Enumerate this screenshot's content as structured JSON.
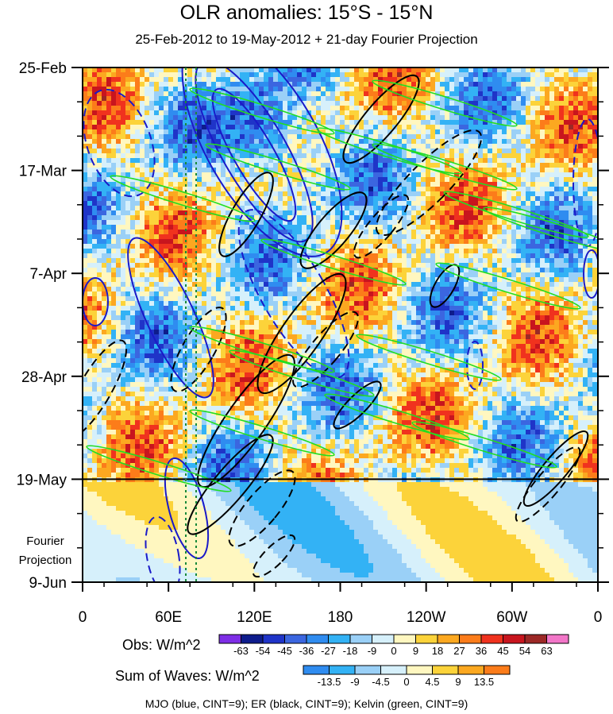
{
  "title": "OLR anomalies: 15°S - 15°N",
  "subtitle": "25-Feb-2012 to 19-May-2012 + 21-day Fourier Projection",
  "projection_label_line1": "Fourier",
  "projection_label_line2": "Projection",
  "obs_label": "Obs: W/m^2",
  "waves_label": "Sum of Waves: W/m^2",
  "footnote": "MJO (blue, CINT=9); ER (black, CINT=9); Kelvin (green, CINT=9)",
  "chart_data": {
    "type": "heatmap",
    "title": "OLR anomalies: 15°S - 15°N",
    "subtitle": "25-Feb-2012 to 19-May-2012 + 21-day Fourier Projection",
    "x_tick_labels": [
      "0",
      "60E",
      "120E",
      "180",
      "120W",
      "60W",
      "0"
    ],
    "x_tick_degrees": [
      0,
      60,
      120,
      180,
      240,
      300,
      360
    ],
    "xlim": [
      0,
      360
    ],
    "y_tick_labels": [
      "25-Feb",
      "17-Mar",
      "7-Apr",
      "28-Apr",
      "19-May",
      "9-Jun"
    ],
    "y_tick_days": [
      0,
      21,
      42,
      63,
      84,
      105
    ],
    "ylim_days": [
      0,
      105
    ],
    "projection_start_day": 84,
    "obs_levels": [
      -63,
      -54,
      -45,
      -36,
      -27,
      -18,
      -9,
      0,
      9,
      18,
      27,
      36,
      45,
      54,
      63
    ],
    "obs_colors": [
      "#7e2ee6",
      "#0e1c8c",
      "#1f34c8",
      "#3b66e0",
      "#2f8cf0",
      "#33b2f5",
      "#9ad0f7",
      "#d6f0fb",
      "#fff7c0",
      "#fcd33a",
      "#fca820",
      "#fc7c1a",
      "#f0321e",
      "#c8151e",
      "#9c2826",
      "#f276c8"
    ],
    "wave_levels": [
      -13.5,
      -9,
      -4.5,
      0,
      4.5,
      9,
      13.5
    ],
    "wave_colors": [
      "#2f8cf0",
      "#33b2f5",
      "#9ad0f7",
      "#d6f0fb",
      "#fff7c0",
      "#fcd33a",
      "#fca820",
      "#fc7c1a"
    ],
    "series": [
      {
        "name": "MJO",
        "color": "#1a1ac8",
        "cint": 9
      },
      {
        "name": "ER",
        "color": "#000000",
        "cint": 9
      },
      {
        "name": "Kelvin",
        "color": "#22dd22",
        "cint": 9
      }
    ]
  }
}
